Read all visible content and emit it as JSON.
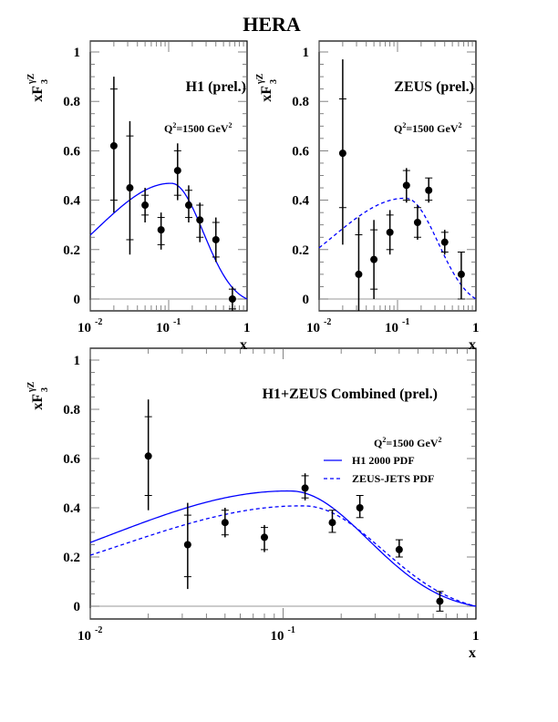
{
  "page_title": "HERA",
  "colors": {
    "data": "#000000",
    "h1_pdf": "#0000ff",
    "zeus_pdf": "#0000ff",
    "frame": "#000000",
    "zero_line": "#999999"
  },
  "chart_data": [
    {
      "id": "h1",
      "type": "scatter",
      "title": "H1 (prel.)",
      "annotation": {
        "base": "Q",
        "sup": "2",
        "text": "=1500 GeV",
        "sup2": "2"
      },
      "xlabel": "x",
      "ylabel": {
        "base": "xF",
        "sub": "3",
        "sup": "γZ"
      },
      "xscale": "log",
      "xlim": [
        0.01,
        1
      ],
      "ylim": [
        -0.05,
        1
      ],
      "xticks": [
        {
          "base": "10",
          "exp": "-2"
        },
        {
          "base": "10",
          "exp": "-1"
        },
        {
          "base": "1",
          "exp": ""
        }
      ],
      "yticks": [
        "0",
        "0.2",
        "0.4",
        "0.6",
        "0.8",
        "1"
      ],
      "points": [
        {
          "x": 0.02,
          "y": 0.62,
          "stat": [
            0.4,
            0.85
          ],
          "tot": [
            0.35,
            0.9
          ]
        },
        {
          "x": 0.032,
          "y": 0.45,
          "stat": [
            0.24,
            0.66
          ],
          "tot": [
            0.18,
            0.72
          ]
        },
        {
          "x": 0.05,
          "y": 0.38,
          "stat": [
            0.34,
            0.42
          ],
          "tot": [
            0.31,
            0.45
          ]
        },
        {
          "x": 0.08,
          "y": 0.28,
          "stat": [
            0.22,
            0.33
          ],
          "tot": [
            0.2,
            0.35
          ]
        },
        {
          "x": 0.13,
          "y": 0.52,
          "stat": [
            0.42,
            0.6
          ],
          "tot": [
            0.4,
            0.63
          ]
        },
        {
          "x": 0.18,
          "y": 0.38,
          "stat": [
            0.33,
            0.44
          ],
          "tot": [
            0.31,
            0.46
          ]
        },
        {
          "x": 0.25,
          "y": 0.32,
          "stat": [
            0.25,
            0.38
          ],
          "tot": [
            0.23,
            0.39
          ]
        },
        {
          "x": 0.4,
          "y": 0.24,
          "stat": [
            0.17,
            0.31
          ],
          "tot": [
            0.15,
            0.33
          ]
        },
        {
          "x": 0.65,
          "y": 0.0,
          "stat": [
            -0.04,
            0.04
          ],
          "tot": [
            -0.05,
            0.05
          ]
        }
      ],
      "curves": [
        {
          "name": "H1 2000 PDF",
          "style": "solid",
          "peak": 0.47,
          "peak_x": 0.11
        }
      ]
    },
    {
      "id": "zeus",
      "type": "scatter",
      "title": "ZEUS (prel.)",
      "annotation": {
        "base": "Q",
        "sup": "2",
        "text": "=1500 GeV",
        "sup2": "2"
      },
      "xlabel": "x",
      "ylabel": {
        "base": "xF",
        "sub": "3",
        "sup": "γZ"
      },
      "xscale": "log",
      "xlim": [
        0.01,
        1
      ],
      "ylim": [
        -0.05,
        1
      ],
      "xticks": [
        {
          "base": "10",
          "exp": "-2"
        },
        {
          "base": "10",
          "exp": "-1"
        },
        {
          "base": "1",
          "exp": ""
        }
      ],
      "yticks": [
        "0",
        "0.2",
        "0.4",
        "0.6",
        "0.8",
        "1"
      ],
      "points": [
        {
          "x": 0.02,
          "y": 0.59,
          "stat": [
            0.37,
            0.81
          ],
          "tot": [
            0.22,
            0.97
          ]
        },
        {
          "x": 0.032,
          "y": 0.1,
          "stat": [
            -0.06,
            0.26
          ],
          "tot": [
            -0.1,
            0.33
          ]
        },
        {
          "x": 0.05,
          "y": 0.16,
          "stat": [
            0.04,
            0.28
          ],
          "tot": [
            0.0,
            0.32
          ]
        },
        {
          "x": 0.08,
          "y": 0.27,
          "stat": [
            0.2,
            0.34
          ],
          "tot": [
            0.18,
            0.36
          ]
        },
        {
          "x": 0.13,
          "y": 0.46,
          "stat": [
            0.4,
            0.52
          ],
          "tot": [
            0.39,
            0.53
          ]
        },
        {
          "x": 0.18,
          "y": 0.31,
          "stat": [
            0.25,
            0.37
          ],
          "tot": [
            0.24,
            0.38
          ]
        },
        {
          "x": 0.25,
          "y": 0.44,
          "stat": [
            0.4,
            0.49
          ],
          "tot": [
            0.39,
            0.49
          ]
        },
        {
          "x": 0.4,
          "y": 0.23,
          "stat": [
            0.19,
            0.27
          ],
          "tot": [
            0.18,
            0.28
          ]
        },
        {
          "x": 0.65,
          "y": 0.1,
          "stat": [
            0.0,
            0.19
          ],
          "tot": [
            0.0,
            0.19
          ]
        }
      ],
      "curves": [
        {
          "name": "ZEUS-JETS PDF",
          "style": "dashed",
          "peak": 0.41,
          "peak_x": 0.13
        }
      ]
    },
    {
      "id": "combined",
      "type": "scatter",
      "title": "H1+ZEUS Combined (prel.)",
      "annotation": {
        "base": "Q",
        "sup": "2",
        "text": "=1500 GeV",
        "sup2": "2"
      },
      "xlabel": "x",
      "ylabel": {
        "base": "xF",
        "sub": "3",
        "sup": "γZ"
      },
      "xscale": "log",
      "xlim": [
        0.01,
        1
      ],
      "ylim": [
        -0.05,
        1
      ],
      "xticks": [
        {
          "base": "10",
          "exp": "-2"
        },
        {
          "base": "10",
          "exp": "-1"
        },
        {
          "base": "1",
          "exp": ""
        }
      ],
      "yticks": [
        "0",
        "0.2",
        "0.4",
        "0.6",
        "0.8",
        "1"
      ],
      "legend": {
        "placement": "top-right",
        "entries": [
          {
            "label": "H1 2000 PDF",
            "style": "solid"
          },
          {
            "label": "ZEUS-JETS PDF",
            "style": "dashed"
          }
        ]
      },
      "points": [
        {
          "x": 0.02,
          "y": 0.61,
          "stat": [
            0.45,
            0.77
          ],
          "tot": [
            0.39,
            0.84
          ]
        },
        {
          "x": 0.032,
          "y": 0.25,
          "stat": [
            0.12,
            0.37
          ],
          "tot": [
            0.07,
            0.42
          ]
        },
        {
          "x": 0.05,
          "y": 0.34,
          "stat": [
            0.29,
            0.39
          ],
          "tot": [
            0.28,
            0.4
          ]
        },
        {
          "x": 0.08,
          "y": 0.28,
          "stat": [
            0.23,
            0.32
          ],
          "tot": [
            0.22,
            0.33
          ]
        },
        {
          "x": 0.13,
          "y": 0.48,
          "stat": [
            0.44,
            0.53
          ],
          "tot": [
            0.43,
            0.54
          ]
        },
        {
          "x": 0.18,
          "y": 0.34,
          "stat": [
            0.3,
            0.39
          ],
          "tot": [
            0.3,
            0.39
          ]
        },
        {
          "x": 0.25,
          "y": 0.4,
          "stat": [
            0.36,
            0.45
          ],
          "tot": [
            0.36,
            0.45
          ]
        },
        {
          "x": 0.4,
          "y": 0.23,
          "stat": [
            0.2,
            0.27
          ],
          "tot": [
            0.2,
            0.27
          ]
        },
        {
          "x": 0.65,
          "y": 0.02,
          "stat": [
            -0.02,
            0.06
          ],
          "tot": [
            -0.02,
            0.06
          ]
        }
      ],
      "curves": [
        {
          "name": "H1 2000 PDF",
          "style": "solid",
          "peak": 0.47,
          "peak_x": 0.11
        },
        {
          "name": "ZEUS-JETS PDF",
          "style": "dashed",
          "peak": 0.41,
          "peak_x": 0.13
        }
      ]
    }
  ]
}
